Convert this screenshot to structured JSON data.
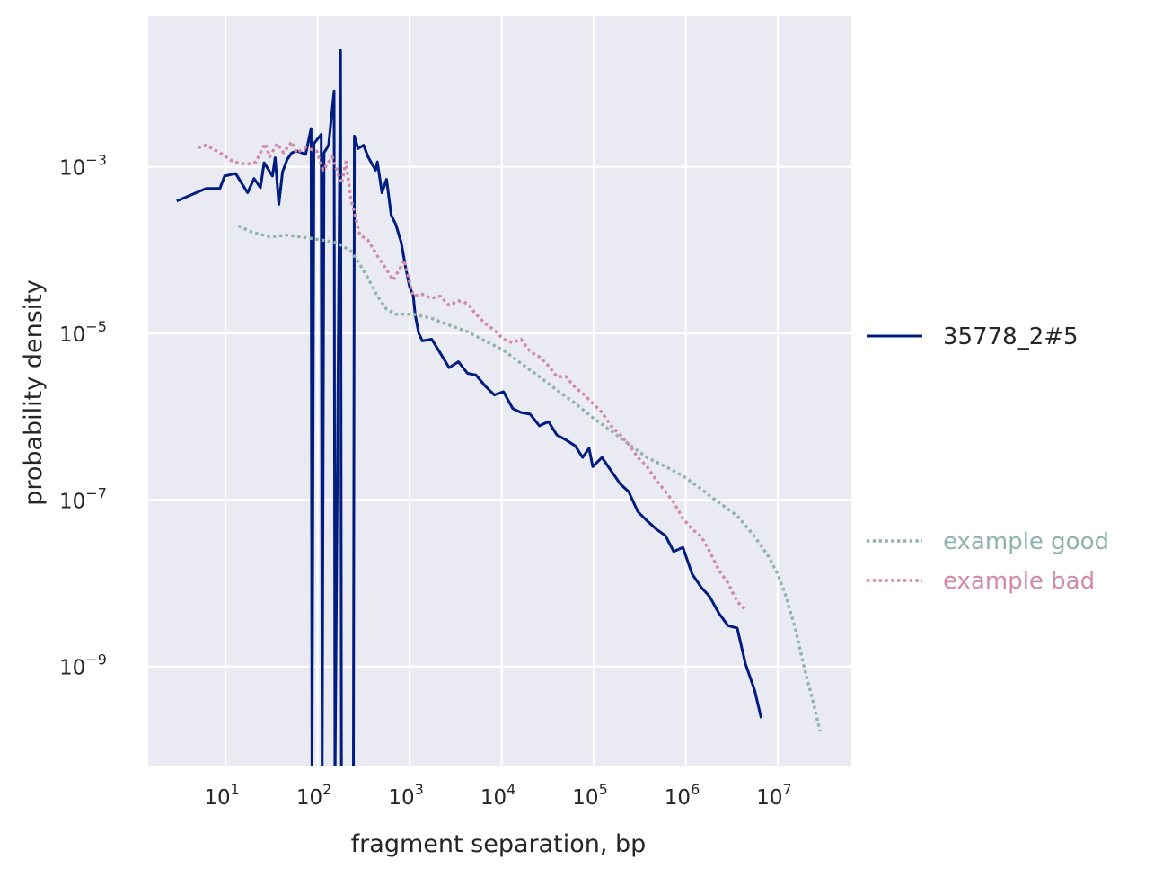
{
  "chart_data": {
    "type": "line",
    "title": "",
    "xlabel": "fragment separation, bp",
    "ylabel": "probability density",
    "xscale": "log",
    "yscale": "log",
    "xlim_log10": [
      0.16,
      7.8
    ],
    "ylim_log10": [
      -10.19,
      -1.19
    ],
    "grid": true,
    "legend_placement": "right outside",
    "x_ticks": [
      {
        "base": "10",
        "exp": "1",
        "log10": 1
      },
      {
        "base": "10",
        "exp": "2",
        "log10": 2
      },
      {
        "base": "10",
        "exp": "3",
        "log10": 3
      },
      {
        "base": "10",
        "exp": "4",
        "log10": 4
      },
      {
        "base": "10",
        "exp": "5",
        "log10": 5
      },
      {
        "base": "10",
        "exp": "6",
        "log10": 6
      },
      {
        "base": "10",
        "exp": "7",
        "log10": 7
      }
    ],
    "y_ticks": [
      {
        "base": "10",
        "exp": "−3",
        "log10": -3
      },
      {
        "base": "10",
        "exp": "−5",
        "log10": -5
      },
      {
        "base": "10",
        "exp": "−7",
        "log10": -7
      },
      {
        "base": "10",
        "exp": "−9",
        "log10": -9
      }
    ],
    "point_format": "[log10(x), log10(y)]; null y = zero density",
    "series": [
      {
        "name": "35778_2#5",
        "color": "#001c7f",
        "style": "solid",
        "points": [
          [
            0.47,
            -3.41
          ],
          [
            0.79,
            -3.26
          ],
          [
            0.94,
            -3.26
          ],
          [
            0.99,
            -3.11
          ],
          [
            1.11,
            -3.08
          ],
          [
            1.24,
            -3.31
          ],
          [
            1.31,
            -3.14
          ],
          [
            1.38,
            -3.25
          ],
          [
            1.42,
            -2.95
          ],
          [
            1.51,
            -3.11
          ],
          [
            1.54,
            -2.89
          ],
          [
            1.58,
            -3.45
          ],
          [
            1.62,
            -3.06
          ],
          [
            1.67,
            -2.91
          ],
          [
            1.72,
            -2.83
          ],
          [
            1.78,
            -2.81
          ],
          [
            1.87,
            -2.85
          ],
          [
            1.93,
            -2.54
          ],
          [
            1.94,
            null
          ],
          [
            1.96,
            -2.72
          ],
          [
            2.04,
            -2.61
          ],
          [
            2.05,
            null
          ],
          [
            2.07,
            -2.83
          ],
          [
            2.12,
            -2.74
          ],
          [
            2.18,
            -2.09
          ],
          [
            2.19,
            null
          ],
          [
            2.25,
            -1.6
          ],
          [
            2.26,
            null
          ],
          [
            2.39,
            null
          ],
          [
            2.4,
            -2.63
          ],
          [
            2.44,
            -2.78
          ],
          [
            2.5,
            -2.74
          ],
          [
            2.55,
            -2.88
          ],
          [
            2.63,
            -3.04
          ],
          [
            2.65,
            -2.94
          ],
          [
            2.7,
            -3.31
          ],
          [
            2.75,
            -3.15
          ],
          [
            2.8,
            -3.58
          ],
          [
            2.85,
            -3.69
          ],
          [
            2.91,
            -3.91
          ],
          [
            2.96,
            -4.23
          ],
          [
            3.0,
            -4.44
          ],
          [
            3.04,
            -4.55
          ],
          [
            3.06,
            -4.77
          ],
          [
            3.1,
            -5.0
          ],
          [
            3.14,
            -5.09
          ],
          [
            3.24,
            -5.07
          ],
          [
            3.33,
            -5.23
          ],
          [
            3.43,
            -5.41
          ],
          [
            3.53,
            -5.34
          ],
          [
            3.63,
            -5.48
          ],
          [
            3.72,
            -5.5
          ],
          [
            3.82,
            -5.63
          ],
          [
            3.92,
            -5.74
          ],
          [
            4.02,
            -5.7
          ],
          [
            4.12,
            -5.9
          ],
          [
            4.21,
            -5.95
          ],
          [
            4.31,
            -5.97
          ],
          [
            4.41,
            -6.11
          ],
          [
            4.51,
            -6.06
          ],
          [
            4.6,
            -6.22
          ],
          [
            4.7,
            -6.28
          ],
          [
            4.8,
            -6.35
          ],
          [
            4.88,
            -6.49
          ],
          [
            4.95,
            -6.38
          ],
          [
            4.99,
            -6.6
          ],
          [
            5.09,
            -6.49
          ],
          [
            5.19,
            -6.65
          ],
          [
            5.29,
            -6.81
          ],
          [
            5.38,
            -6.9
          ],
          [
            5.48,
            -7.14
          ],
          [
            5.58,
            -7.25
          ],
          [
            5.68,
            -7.35
          ],
          [
            5.78,
            -7.43
          ],
          [
            5.87,
            -7.62
          ],
          [
            5.97,
            -7.57
          ],
          [
            6.07,
            -7.89
          ],
          [
            6.17,
            -8.05
          ],
          [
            6.26,
            -8.16
          ],
          [
            6.36,
            -8.36
          ],
          [
            6.46,
            -8.51
          ],
          [
            6.56,
            -8.54
          ],
          [
            6.65,
            -8.97
          ],
          [
            6.75,
            -9.29
          ],
          [
            6.82,
            -9.62
          ]
        ]
      },
      {
        "name": "example good",
        "color": "#8eb4ac",
        "style": "dotted",
        "points": [
          [
            1.14,
            -3.71
          ],
          [
            1.28,
            -3.78
          ],
          [
            1.48,
            -3.84
          ],
          [
            1.67,
            -3.82
          ],
          [
            1.87,
            -3.85
          ],
          [
            2.06,
            -3.88
          ],
          [
            2.21,
            -3.91
          ],
          [
            2.36,
            -4.01
          ],
          [
            2.46,
            -4.17
          ],
          [
            2.55,
            -4.34
          ],
          [
            2.65,
            -4.55
          ],
          [
            2.75,
            -4.71
          ],
          [
            2.85,
            -4.77
          ],
          [
            3.04,
            -4.77
          ],
          [
            3.24,
            -4.82
          ],
          [
            3.43,
            -4.9
          ],
          [
            3.63,
            -4.98
          ],
          [
            3.82,
            -5.09
          ],
          [
            4.02,
            -5.2
          ],
          [
            4.21,
            -5.36
          ],
          [
            4.41,
            -5.52
          ],
          [
            4.6,
            -5.68
          ],
          [
            4.8,
            -5.84
          ],
          [
            4.99,
            -6.01
          ],
          [
            5.19,
            -6.17
          ],
          [
            5.38,
            -6.33
          ],
          [
            5.58,
            -6.49
          ],
          [
            5.78,
            -6.6
          ],
          [
            5.97,
            -6.71
          ],
          [
            6.17,
            -6.87
          ],
          [
            6.36,
            -7.03
          ],
          [
            6.56,
            -7.19
          ],
          [
            6.75,
            -7.44
          ],
          [
            6.9,
            -7.68
          ],
          [
            7.0,
            -7.89
          ],
          [
            7.09,
            -8.16
          ],
          [
            7.19,
            -8.54
          ],
          [
            7.29,
            -9.02
          ],
          [
            7.39,
            -9.45
          ],
          [
            7.46,
            -9.78
          ]
        ]
      },
      {
        "name": "example bad",
        "color": "#d08ba8",
        "style": "dotted",
        "points": [
          [
            0.7,
            -2.77
          ],
          [
            0.79,
            -2.74
          ],
          [
            0.94,
            -2.83
          ],
          [
            1.09,
            -2.94
          ],
          [
            1.23,
            -2.97
          ],
          [
            1.33,
            -2.94
          ],
          [
            1.43,
            -2.72
          ],
          [
            1.48,
            -2.88
          ],
          [
            1.56,
            -2.72
          ],
          [
            1.63,
            -2.83
          ],
          [
            1.72,
            -2.7
          ],
          [
            1.77,
            -2.83
          ],
          [
            1.87,
            -2.77
          ],
          [
            1.99,
            -2.81
          ],
          [
            2.06,
            -3.04
          ],
          [
            2.16,
            -2.88
          ],
          [
            2.26,
            -3.2
          ],
          [
            2.31,
            -2.94
          ],
          [
            2.36,
            -3.37
          ],
          [
            2.46,
            -3.82
          ],
          [
            2.55,
            -3.88
          ],
          [
            2.65,
            -4.07
          ],
          [
            2.75,
            -4.23
          ],
          [
            2.82,
            -4.36
          ],
          [
            2.89,
            -4.23
          ],
          [
            2.94,
            -4.12
          ],
          [
            3.04,
            -4.55
          ],
          [
            3.14,
            -4.53
          ],
          [
            3.24,
            -4.58
          ],
          [
            3.33,
            -4.55
          ],
          [
            3.43,
            -4.66
          ],
          [
            3.53,
            -4.61
          ],
          [
            3.63,
            -4.64
          ],
          [
            3.72,
            -4.77
          ],
          [
            3.82,
            -4.88
          ],
          [
            3.92,
            -4.96
          ],
          [
            4.02,
            -5.07
          ],
          [
            4.12,
            -5.11
          ],
          [
            4.21,
            -5.07
          ],
          [
            4.31,
            -5.22
          ],
          [
            4.41,
            -5.28
          ],
          [
            4.51,
            -5.39
          ],
          [
            4.6,
            -5.52
          ],
          [
            4.7,
            -5.52
          ],
          [
            4.8,
            -5.65
          ],
          [
            4.9,
            -5.74
          ],
          [
            4.99,
            -5.84
          ],
          [
            5.09,
            -5.95
          ],
          [
            5.19,
            -6.11
          ],
          [
            5.29,
            -6.22
          ],
          [
            5.38,
            -6.33
          ],
          [
            5.48,
            -6.49
          ],
          [
            5.58,
            -6.6
          ],
          [
            5.68,
            -6.76
          ],
          [
            5.78,
            -6.9
          ],
          [
            5.87,
            -7.03
          ],
          [
            5.97,
            -7.22
          ],
          [
            6.07,
            -7.35
          ],
          [
            6.17,
            -7.44
          ],
          [
            6.26,
            -7.62
          ],
          [
            6.36,
            -7.84
          ],
          [
            6.46,
            -8.0
          ],
          [
            6.56,
            -8.22
          ],
          [
            6.65,
            -8.32
          ]
        ]
      }
    ]
  }
}
